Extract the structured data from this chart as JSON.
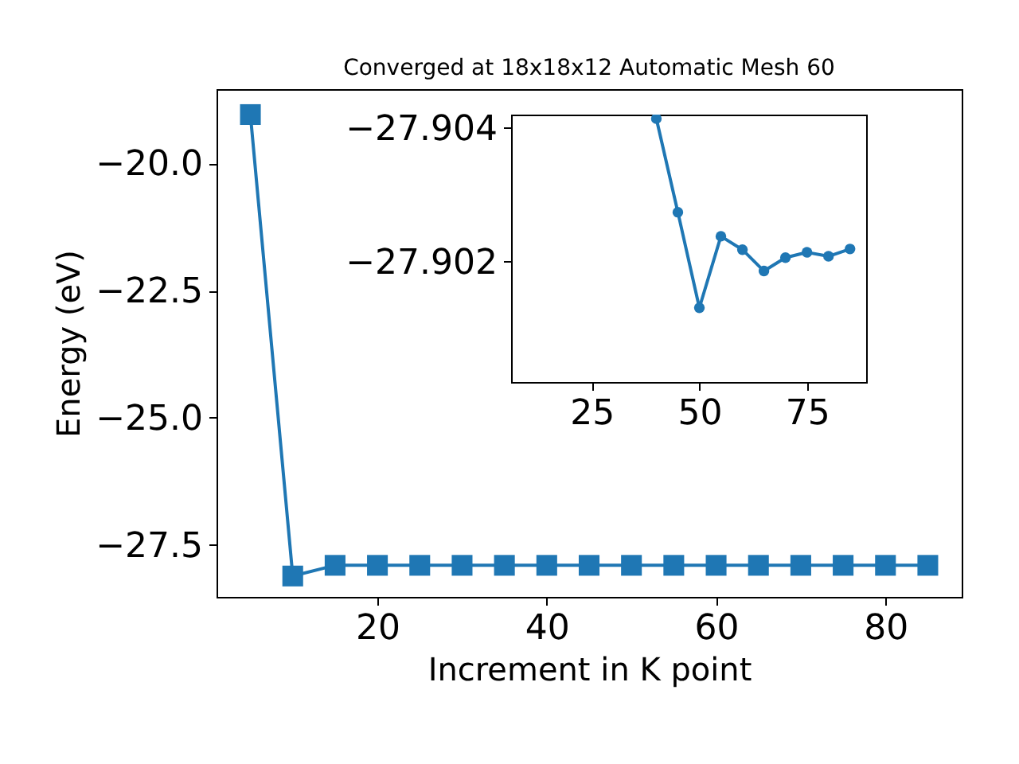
{
  "chart_data": [
    {
      "type": "line",
      "title": "Converged at 18x18x12 Automatic Mesh 60",
      "xlabel": "Increment in K point",
      "ylabel": "Energy (eV)",
      "x": [
        5,
        10,
        15,
        20,
        25,
        30,
        35,
        40,
        45,
        50,
        55,
        60,
        65,
        70,
        75,
        80,
        85
      ],
      "series": [
        {
          "color": "#1f77b4",
          "values": [
            -19.04,
            -28.11,
            -27.9,
            -27.9,
            -27.9,
            -27.9,
            -27.9,
            -27.9,
            -27.9,
            -27.9,
            -27.9,
            -27.9,
            -27.9,
            -27.9,
            -27.9,
            -27.9,
            -27.9
          ]
        }
      ],
      "xlim": [
        1,
        89
      ],
      "xticks": [
        20,
        40,
        60,
        80
      ],
      "ylim": [
        -28.52,
        -18.54
      ],
      "yticks": [
        {
          "value": -20,
          "label": "−20.0"
        },
        {
          "value": -22.5,
          "label": "−22.5"
        },
        {
          "value": -25,
          "label": "−25.0"
        },
        {
          "value": -27.5,
          "label": "−27.5"
        }
      ],
      "marker": "square",
      "grid": false
    },
    {
      "type": "line",
      "x": [
        40,
        45,
        50,
        55,
        60,
        65,
        70,
        75,
        80,
        85
      ],
      "series": [
        {
          "color": "#1f77b4",
          "values": [
            -27.90414,
            -27.90274,
            -27.90131,
            -27.90238,
            -27.90218,
            -27.90186,
            -27.90206,
            -27.90214,
            -27.90208,
            -27.90219
          ]
        }
      ],
      "xlim": [
        6.25,
        88.75
      ],
      "xticks": [
        25,
        50,
        75
      ],
      "ylim": [
        -27.9002,
        -27.9042
      ],
      "yticks": [
        -27.904,
        -27.902
      ],
      "marker": "circle",
      "grid": false
    }
  ]
}
